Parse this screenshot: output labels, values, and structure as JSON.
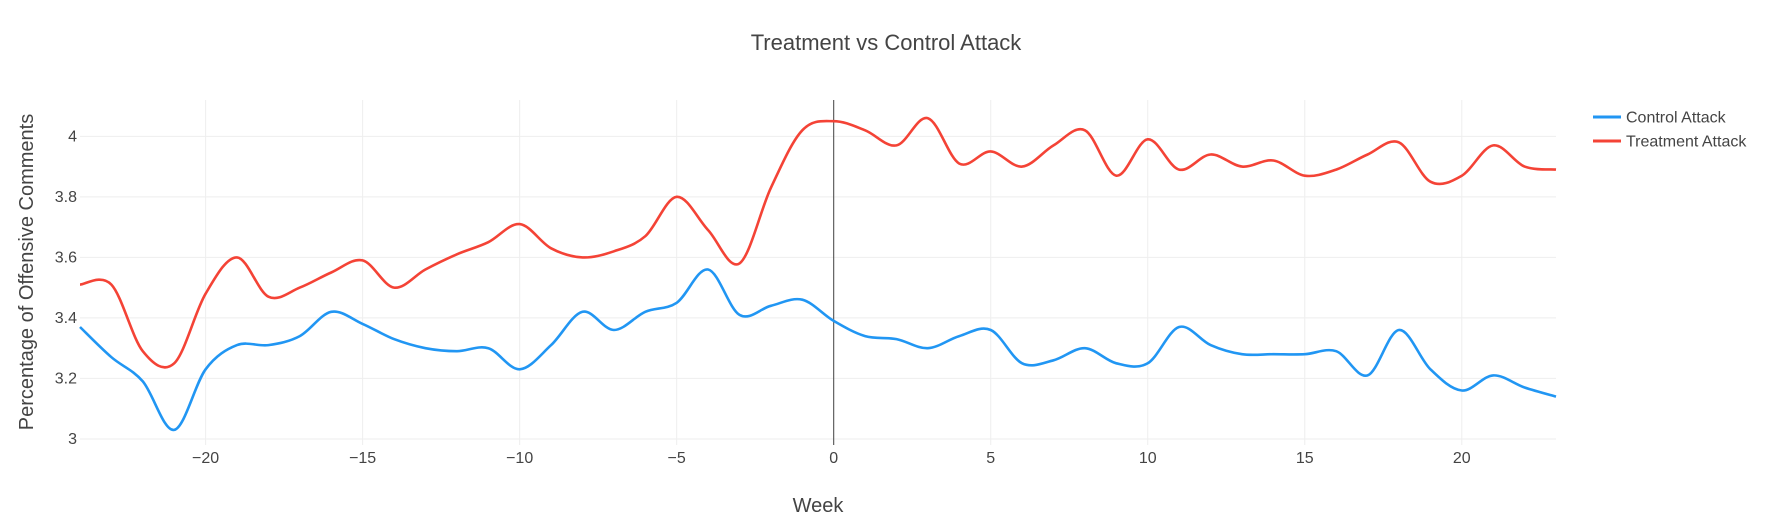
{
  "chart_data": {
    "type": "line",
    "title": "Treatment vs Control Attack",
    "xlabel": "Week",
    "ylabel": "Percentage of Offensive Comments",
    "xlim": [
      -24,
      23
    ],
    "ylim": [
      2.98,
      4.12
    ],
    "x_ticks": [
      -20,
      -15,
      -10,
      -5,
      0,
      5,
      10,
      15,
      20
    ],
    "x_tick_labels": [
      "−20",
      "−15",
      "−10",
      "−5",
      "0",
      "5",
      "10",
      "15",
      "20"
    ],
    "y_ticks": [
      3,
      3.2,
      3.4,
      3.6,
      3.8,
      4
    ],
    "y_tick_labels": [
      "3",
      "3.2",
      "3.4",
      "3.6",
      "3.8",
      "4"
    ],
    "grid": true,
    "legend_position": "top-right",
    "vertical_reference_line_x": 0,
    "x": [
      -24,
      -23,
      -22,
      -21,
      -20,
      -19,
      -18,
      -17,
      -16,
      -15,
      -14,
      -13,
      -12,
      -11,
      -10,
      -9,
      -8,
      -7,
      -6,
      -5,
      -4,
      -3,
      -2,
      -1,
      0,
      1,
      2,
      3,
      4,
      5,
      6,
      7,
      8,
      9,
      10,
      11,
      12,
      13,
      14,
      15,
      16,
      17,
      18,
      19,
      20,
      21,
      22,
      23
    ],
    "series": [
      {
        "name": "Control Attack",
        "color": "#2196F3",
        "values": [
          3.37,
          3.27,
          3.19,
          3.03,
          3.23,
          3.31,
          3.31,
          3.34,
          3.42,
          3.38,
          3.33,
          3.3,
          3.29,
          3.3,
          3.23,
          3.31,
          3.42,
          3.36,
          3.42,
          3.45,
          3.56,
          3.41,
          3.44,
          3.46,
          3.39,
          3.34,
          3.33,
          3.3,
          3.34,
          3.36,
          3.25,
          3.26,
          3.3,
          3.25,
          3.25,
          3.37,
          3.31,
          3.28,
          3.28,
          3.28,
          3.29,
          3.21,
          3.36,
          3.23,
          3.16,
          3.21,
          3.17,
          3.14
        ]
      },
      {
        "name": "Treatment Attack",
        "color": "#F44336",
        "values": [
          3.51,
          3.51,
          3.29,
          3.25,
          3.48,
          3.6,
          3.47,
          3.5,
          3.55,
          3.59,
          3.5,
          3.56,
          3.61,
          3.65,
          3.71,
          3.63,
          3.6,
          3.62,
          3.67,
          3.8,
          3.69,
          3.58,
          3.83,
          4.02,
          4.05,
          4.02,
          3.97,
          4.06,
          3.91,
          3.95,
          3.9,
          3.97,
          4.02,
          3.87,
          3.99,
          3.89,
          3.94,
          3.9,
          3.92,
          3.87,
          3.89,
          3.94,
          3.98,
          3.85,
          3.87,
          3.97,
          3.9,
          3.89
        ]
      }
    ]
  }
}
